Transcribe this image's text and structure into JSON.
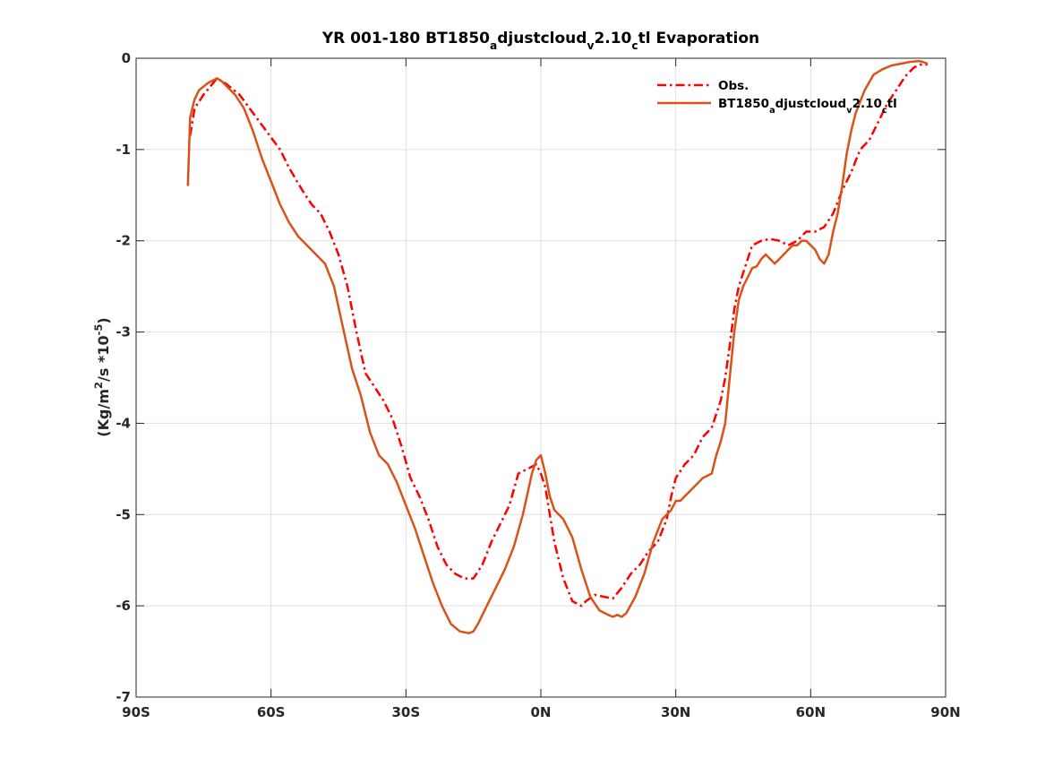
{
  "chart_data": {
    "type": "line",
    "title": {
      "parts": [
        {
          "t": "YR 001-180 BT1850",
          "s": ""
        },
        {
          "t": "a",
          "s": "sub"
        },
        {
          "t": "djustcloud",
          "s": ""
        },
        {
          "t": "v",
          "s": "sub"
        },
        {
          "t": "2.10",
          "s": ""
        },
        {
          "t": "c",
          "s": "sub"
        },
        {
          "t": "tl Evaporation",
          "s": ""
        }
      ]
    },
    "ylabel": {
      "parts": [
        {
          "t": "(Kg/m",
          "s": ""
        },
        {
          "t": "2",
          "s": "sup"
        },
        {
          "t": "/s *10",
          "s": ""
        },
        {
          "t": "-5",
          "s": "sup"
        },
        {
          "t": ")",
          "s": ""
        }
      ]
    },
    "xlim": [
      -90,
      90
    ],
    "ylim": [
      -7,
      0
    ],
    "xticks": [
      {
        "v": -90,
        "label": "90S"
      },
      {
        "v": -60,
        "label": "60S"
      },
      {
        "v": -30,
        "label": "30S"
      },
      {
        "v": 0,
        "label": "0N"
      },
      {
        "v": 30,
        "label": "30N"
      },
      {
        "v": 60,
        "label": "60N"
      },
      {
        "v": 90,
        "label": "90N"
      }
    ],
    "yticks": [
      {
        "v": 0,
        "label": "0"
      },
      {
        "v": -1,
        "label": "-1"
      },
      {
        "v": -2,
        "label": "-2"
      },
      {
        "v": -3,
        "label": "-3"
      },
      {
        "v": -4,
        "label": "-4"
      },
      {
        "v": -5,
        "label": "-5"
      },
      {
        "v": -6,
        "label": "-6"
      },
      {
        "v": -7,
        "label": "-7"
      }
    ],
    "grid": true,
    "legend_position": "top-right",
    "series": [
      {
        "name": "Obs.",
        "label_parts": [
          {
            "t": "Obs.",
            "s": ""
          }
        ],
        "color": "#ff0000",
        "style": "dashdot",
        "x": [
          -78,
          -77,
          -75,
          -73,
          -72,
          -70,
          -67,
          -64,
          -61,
          -58,
          -56,
          -53,
          -51,
          -49,
          -47,
          -45,
          -43,
          -41,
          -39,
          -37,
          -35,
          -33,
          -31,
          -29,
          -27,
          -25,
          -23,
          -21,
          -19,
          -17,
          -15,
          -13,
          -11,
          -9,
          -7,
          -5,
          -3,
          -1,
          0,
          1,
          2,
          3,
          5,
          7,
          9,
          10,
          12,
          14,
          16,
          18,
          20,
          22,
          24,
          26,
          28,
          29,
          30,
          32,
          34,
          36,
          38,
          40,
          41,
          42,
          43,
          44,
          45,
          47,
          49,
          51,
          53,
          55,
          57,
          59,
          61,
          63,
          65,
          67,
          69,
          71,
          73,
          75,
          77,
          79,
          81,
          83,
          85,
          86
        ],
        "y": [
          -0.85,
          -0.55,
          -0.4,
          -0.28,
          -0.22,
          -0.28,
          -0.4,
          -0.6,
          -0.8,
          -1.0,
          -1.2,
          -1.45,
          -1.6,
          -1.7,
          -1.9,
          -2.15,
          -2.5,
          -3.0,
          -3.45,
          -3.6,
          -3.75,
          -3.95,
          -4.25,
          -4.6,
          -4.8,
          -5.05,
          -5.35,
          -5.55,
          -5.65,
          -5.7,
          -5.7,
          -5.55,
          -5.3,
          -5.1,
          -4.9,
          -4.55,
          -4.5,
          -4.45,
          -4.55,
          -4.7,
          -5.0,
          -5.3,
          -5.7,
          -5.95,
          -6.0,
          -5.95,
          -5.88,
          -5.9,
          -5.92,
          -5.8,
          -5.65,
          -5.55,
          -5.4,
          -5.3,
          -5.05,
          -4.8,
          -4.6,
          -4.45,
          -4.35,
          -4.15,
          -4.05,
          -3.75,
          -3.5,
          -3.15,
          -2.75,
          -2.5,
          -2.35,
          -2.05,
          -2.0,
          -1.98,
          -2.0,
          -2.05,
          -2.0,
          -1.9,
          -1.9,
          -1.85,
          -1.7,
          -1.45,
          -1.25,
          -1.0,
          -0.9,
          -0.7,
          -0.5,
          -0.35,
          -0.2,
          -0.1,
          -0.06,
          -0.07
        ]
      },
      {
        "name": "BT1850adjustcloudv2.10ctl",
        "label_parts": [
          {
            "t": "BT1850",
            "s": ""
          },
          {
            "t": "a",
            "s": "sub"
          },
          {
            "t": "djustcloud",
            "s": ""
          },
          {
            "t": "v",
            "s": "sub"
          },
          {
            "t": "2.10",
            "s": ""
          },
          {
            "t": "c",
            "s": "sub"
          },
          {
            "t": "tl",
            "s": ""
          }
        ],
        "color": "#d95319",
        "style": "solid",
        "x": [
          -78.5,
          -78,
          -77,
          -76,
          -74,
          -72,
          -71,
          -70,
          -69,
          -68,
          -66,
          -64,
          -62,
          -60,
          -58,
          -56,
          -54,
          -52,
          -50,
          -48,
          -46,
          -44,
          -42,
          -40,
          -38,
          -36,
          -34,
          -32,
          -30,
          -28,
          -26,
          -24,
          -22,
          -20,
          -18,
          -16,
          -15,
          -14,
          -13,
          -12,
          -10,
          -8,
          -6,
          -4,
          -2,
          -1,
          0,
          1,
          2,
          3,
          5,
          7,
          9,
          11,
          13,
          15,
          16,
          17,
          18,
          19,
          21,
          23,
          25,
          27,
          29,
          30,
          31,
          32,
          34,
          36,
          38,
          39,
          40,
          41,
          42,
          43,
          44,
          45,
          46,
          47,
          48,
          49,
          50,
          51,
          52,
          53,
          54,
          55,
          56,
          57,
          58,
          59,
          60,
          61,
          62,
          63,
          64,
          65,
          66,
          67,
          68,
          69,
          70,
          72,
          74,
          76,
          78,
          80,
          82,
          84,
          85,
          86
        ],
        "y": [
          -1.4,
          -0.65,
          -0.45,
          -0.35,
          -0.27,
          -0.22,
          -0.25,
          -0.3,
          -0.35,
          -0.4,
          -0.55,
          -0.8,
          -1.1,
          -1.35,
          -1.6,
          -1.8,
          -1.95,
          -2.05,
          -2.15,
          -2.25,
          -2.5,
          -2.95,
          -3.4,
          -3.7,
          -4.1,
          -4.35,
          -4.45,
          -4.65,
          -4.9,
          -5.15,
          -5.45,
          -5.75,
          -6.0,
          -6.2,
          -6.28,
          -6.3,
          -6.28,
          -6.2,
          -6.1,
          -6.0,
          -5.8,
          -5.6,
          -5.35,
          -5.0,
          -4.55,
          -4.4,
          -4.35,
          -4.55,
          -4.8,
          -4.95,
          -5.05,
          -5.25,
          -5.6,
          -5.9,
          -6.05,
          -6.1,
          -6.12,
          -6.1,
          -6.12,
          -6.08,
          -5.9,
          -5.65,
          -5.3,
          -5.05,
          -4.95,
          -4.85,
          -4.85,
          -4.8,
          -4.7,
          -4.6,
          -4.55,
          -4.35,
          -4.2,
          -4.0,
          -3.5,
          -3.0,
          -2.65,
          -2.5,
          -2.4,
          -2.3,
          -2.28,
          -2.2,
          -2.15,
          -2.2,
          -2.25,
          -2.2,
          -2.15,
          -2.1,
          -2.05,
          -2.05,
          -2.0,
          -2.0,
          -2.05,
          -2.1,
          -2.2,
          -2.25,
          -2.15,
          -1.9,
          -1.7,
          -1.4,
          -1.05,
          -0.8,
          -0.6,
          -0.35,
          -0.18,
          -0.12,
          -0.08,
          -0.06,
          -0.04,
          -0.03,
          -0.04,
          -0.06
        ]
      }
    ]
  }
}
